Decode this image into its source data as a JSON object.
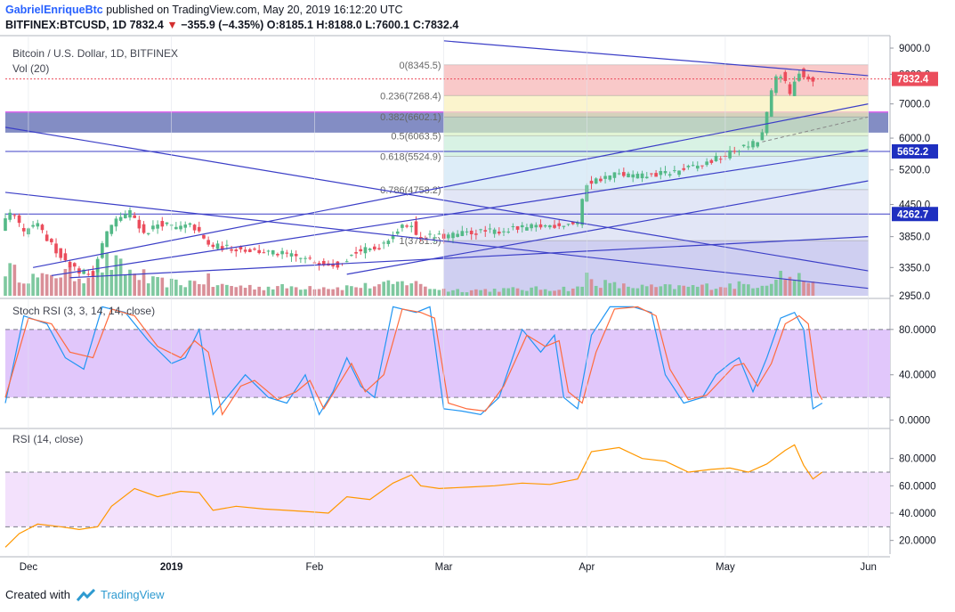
{
  "header": {
    "author": "GabrielEnriqueBtc",
    "published": "published on TradingView.com, May 20, 2019 16:12:20 UTC",
    "symbol": "BITFINEX:BTCUSD, 1D",
    "last": "7832.4",
    "change": "−355.9 (−4.35%)",
    "open": "O:8185.1",
    "high": "H:8188.0",
    "low": "L:7600.1",
    "close": "C:7832.4"
  },
  "footer": {
    "created_with": "Created with",
    "brand": "TradingView"
  },
  "colors": {
    "up": "#53b987",
    "down": "#eb4d5c",
    "vol_up": "#7ec89f",
    "vol_down": "#d98f98",
    "trendline": "#3c3fc7",
    "stoch_k": "#2196f3",
    "stoch_d": "#ff6b3d",
    "rsi": "#ff9800",
    "osc_band": "#e1c7fb",
    "rsi_band": "#f3e1fc"
  },
  "chart_data": [
    {
      "type": "candlestick",
      "title": "Bitcoin / U.S. Dollar, 1D, BITFINEX",
      "legend": [
        "Vol (20)"
      ],
      "yscale": "log",
      "ylim": [
        2950,
        9000
      ],
      "xlim": [
        "2018-11-26",
        "2019-06-03"
      ],
      "x_ticks": [
        "Dec",
        "2019",
        "Feb",
        "Mar",
        "Apr",
        "May",
        "Jun"
      ],
      "x_tick_dates": [
        "2018-12-01",
        "2019-01-01",
        "2019-02-01",
        "2019-03-01",
        "2019-04-01",
        "2019-05-01",
        "2019-06-01"
      ],
      "y_ticks": [
        9000,
        8000,
        7000,
        6000,
        5200,
        4450,
        3850,
        3350,
        2950
      ],
      "y_tick_labels": [
        "9000.0",
        "8000.0",
        "7000.0",
        "6000.0",
        "5200.0",
        "4450.0",
        "3850.0",
        "3350.0",
        "2950.0"
      ],
      "price_tags": [
        {
          "label": "7832.4",
          "value": 7832.4,
          "color": "#eb4d5c"
        },
        {
          "label": "5652.2",
          "value": 5652.2,
          "color": "#1e2fc0"
        },
        {
          "label": "4262.7",
          "value": 4262.7,
          "color": "#1e2fc0"
        }
      ],
      "horizontal_lines": [
        {
          "value": 5652.2,
          "color": "#3c3fc7"
        },
        {
          "value": 4262.7,
          "color": "#3c3fc7"
        }
      ],
      "zone": {
        "from": 6150,
        "to": 6750,
        "color": "#1e2f93"
      },
      "fib_retracement": {
        "start": "2019-03-01",
        "end": "2019-06-01",
        "levels": [
          {
            "label": "0(8345.5)",
            "value": 8345.5,
            "color": "#f7b2b2"
          },
          {
            "label": "0.236(7268.4)",
            "value": 7268.4,
            "color": "#f9efb8"
          },
          {
            "label": "0.382(6602.1)",
            "value": 6602.1,
            "color": "#d6efc2"
          },
          {
            "label": "0.5(6063.5)",
            "value": 6063.5,
            "color": "#c8ecd8"
          },
          {
            "label": "0.618(5524.9)",
            "value": 5524.9,
            "color": "#cfe6f5"
          },
          {
            "label": "0.786(4758.2)",
            "value": 4758.2,
            "color": "#d6dcf2"
          },
          {
            "label": "1(3781.5)",
            "value": 3781.5,
            "color": "#d0d0ee"
          }
        ]
      },
      "ohlc_segments": [
        {
          "from": "2018-11-26",
          "to": "2018-12-06",
          "path": [
            4000,
            4300,
            3900,
            4100,
            3800
          ],
          "volume": [
            60,
            45,
            40,
            35,
            38
          ]
        },
        {
          "from": "2018-12-06",
          "to": "2018-12-16",
          "path": [
            3800,
            3500,
            3300,
            3250
          ],
          "volume": [
            50,
            45,
            40,
            55
          ]
        },
        {
          "from": "2018-12-16",
          "to": "2018-12-27",
          "path": [
            3250,
            3900,
            4200,
            4300,
            3900
          ],
          "volume": [
            60,
            70,
            55,
            45,
            40
          ]
        },
        {
          "from": "2018-12-27",
          "to": "2019-01-10",
          "path": [
            3900,
            4100,
            4000,
            4050,
            3700
          ],
          "volume": [
            30,
            28,
            25,
            30,
            35
          ]
        },
        {
          "from": "2019-01-10",
          "to": "2019-02-07",
          "path": [
            3700,
            3650,
            3600,
            3550,
            3450,
            3400
          ],
          "volume": [
            22,
            20,
            18,
            18,
            20,
            16
          ]
        },
        {
          "from": "2019-02-07",
          "to": "2019-02-24",
          "path": [
            3400,
            3600,
            3650,
            3950,
            4150
          ],
          "volume": [
            18,
            20,
            22,
            26,
            35
          ]
        },
        {
          "from": "2019-02-24",
          "to": "2019-03-31",
          "path": [
            3850,
            3850,
            3920,
            3950,
            4000,
            4050,
            4100
          ],
          "volume": [
            20,
            12,
            12,
            13,
            14,
            15,
            16
          ]
        },
        {
          "from": "2019-03-31",
          "to": "2019-04-02",
          "path": [
            4100,
            4900
          ],
          "volume": [
            16,
            95
          ]
        },
        {
          "from": "2019-04-02",
          "to": "2019-05-09",
          "path": [
            4900,
            5100,
            5050,
            5150,
            5300,
            5600,
            5900
          ],
          "volume": [
            30,
            20,
            18,
            18,
            20,
            22,
            24
          ]
        },
        {
          "from": "2019-05-09",
          "to": "2019-05-14",
          "path": [
            5900,
            6200,
            7000,
            7900,
            8000
          ],
          "volume": [
            25,
            30,
            40,
            45,
            42
          ]
        },
        {
          "from": "2019-05-14",
          "to": "2019-05-20",
          "path": [
            8000,
            7300,
            8100,
            7832.4
          ],
          "volume": [
            40,
            38,
            35,
            30
          ]
        }
      ],
      "trendlines": [
        {
          "from": [
            "2019-03-01",
            9300
          ],
          "to": [
            "2019-06-01",
            7950
          ]
        },
        {
          "from": [
            "2018-12-02",
            3350
          ],
          "to": [
            "2019-06-01",
            7000
          ]
        },
        {
          "from": [
            "2018-12-06",
            3230
          ],
          "to": [
            "2019-06-01",
            5700
          ]
        },
        {
          "from": [
            "2019-02-08",
            3250
          ],
          "to": [
            "2019-06-01",
            4950
          ]
        },
        {
          "from": [
            "2018-12-10",
            3200
          ],
          "to": [
            "2019-06-01",
            3850
          ]
        },
        {
          "from": [
            "2018-11-26",
            6300
          ],
          "to": [
            "2019-06-01",
            3300
          ]
        },
        {
          "from": [
            "2018-11-26",
            4700
          ],
          "to": [
            "2019-06-01",
            3050
          ]
        }
      ],
      "trend_extensions": [
        {
          "from": [
            "2019-05-09",
            5900
          ],
          "to": [
            "2019-06-01",
            6600
          ]
        }
      ]
    },
    {
      "type": "line",
      "title": "Stoch RSI (3, 3, 14, 14, close)",
      "ylim": [
        -5,
        105
      ],
      "y_ticks": [
        80,
        40,
        0
      ],
      "y_tick_labels": [
        "80.0000",
        "40.0000",
        "0.0000"
      ],
      "bands": [
        20,
        80
      ],
      "series": [
        {
          "color": "#2196f3",
          "points": [
            [
              "2018-11-26",
              15
            ],
            [
              "2018-11-30",
              92
            ],
            [
              "2018-12-05",
              85
            ],
            [
              "2018-12-09",
              55
            ],
            [
              "2018-12-13",
              45
            ],
            [
              "2018-12-17",
              100
            ],
            [
              "2018-12-22",
              95
            ],
            [
              "2018-12-27",
              70
            ],
            [
              "2019-01-01",
              50
            ],
            [
              "2019-01-04",
              55
            ],
            [
              "2019-01-07",
              80
            ],
            [
              "2019-01-10",
              5
            ],
            [
              "2019-01-14",
              25
            ],
            [
              "2019-01-17",
              40
            ],
            [
              "2019-01-22",
              20
            ],
            [
              "2019-01-26",
              15
            ],
            [
              "2019-01-30",
              40
            ],
            [
              "2019-02-02",
              5
            ],
            [
              "2019-02-05",
              25
            ],
            [
              "2019-02-08",
              55
            ],
            [
              "2019-02-11",
              30
            ],
            [
              "2019-02-14",
              20
            ],
            [
              "2019-02-18",
              100
            ],
            [
              "2019-02-23",
              95
            ],
            [
              "2019-02-26",
              100
            ],
            [
              "2019-03-01",
              10
            ],
            [
              "2019-03-05",
              8
            ],
            [
              "2019-03-09",
              5
            ],
            [
              "2019-03-13",
              20
            ],
            [
              "2019-03-18",
              80
            ],
            [
              "2019-03-22",
              60
            ],
            [
              "2019-03-25",
              75
            ],
            [
              "2019-03-27",
              20
            ],
            [
              "2019-03-30",
              10
            ],
            [
              "2019-04-02",
              75
            ],
            [
              "2019-04-06",
              100
            ],
            [
              "2019-04-11",
              100
            ],
            [
              "2019-04-15",
              95
            ],
            [
              "2019-04-18",
              40
            ],
            [
              "2019-04-22",
              15
            ],
            [
              "2019-04-26",
              20
            ],
            [
              "2019-04-29",
              40
            ],
            [
              "2019-05-02",
              50
            ],
            [
              "2019-05-04",
              55
            ],
            [
              "2019-05-07",
              25
            ],
            [
              "2019-05-10",
              55
            ],
            [
              "2019-05-13",
              90
            ],
            [
              "2019-05-16",
              95
            ],
            [
              "2019-05-18",
              80
            ],
            [
              "2019-05-20",
              10
            ],
            [
              "2019-05-22",
              15
            ]
          ]
        },
        {
          "color": "#ff6b3d",
          "points": [
            [
              "2018-11-26",
              20
            ],
            [
              "2018-12-01",
              90
            ],
            [
              "2018-12-06",
              85
            ],
            [
              "2018-12-10",
              60
            ],
            [
              "2018-12-15",
              55
            ],
            [
              "2018-12-19",
              98
            ],
            [
              "2018-12-24",
              92
            ],
            [
              "2018-12-29",
              65
            ],
            [
              "2019-01-03",
              55
            ],
            [
              "2019-01-06",
              70
            ],
            [
              "2019-01-09",
              60
            ],
            [
              "2019-01-12",
              5
            ],
            [
              "2019-01-16",
              30
            ],
            [
              "2019-01-19",
              35
            ],
            [
              "2019-01-24",
              18
            ],
            [
              "2019-01-28",
              25
            ],
            [
              "2019-01-31",
              35
            ],
            [
              "2019-02-03",
              10
            ],
            [
              "2019-02-06",
              30
            ],
            [
              "2019-02-09",
              50
            ],
            [
              "2019-02-12",
              25
            ],
            [
              "2019-02-16",
              40
            ],
            [
              "2019-02-20",
              98
            ],
            [
              "2019-02-24",
              95
            ],
            [
              "2019-02-27",
              90
            ],
            [
              "2019-03-02",
              15
            ],
            [
              "2019-03-06",
              10
            ],
            [
              "2019-03-10",
              8
            ],
            [
              "2019-03-14",
              30
            ],
            [
              "2019-03-19",
              75
            ],
            [
              "2019-03-23",
              65
            ],
            [
              "2019-03-26",
              70
            ],
            [
              "2019-03-28",
              25
            ],
            [
              "2019-03-31",
              15
            ],
            [
              "2019-04-03",
              60
            ],
            [
              "2019-04-07",
              98
            ],
            [
              "2019-04-12",
              100
            ],
            [
              "2019-04-16",
              92
            ],
            [
              "2019-04-19",
              45
            ],
            [
              "2019-04-23",
              18
            ],
            [
              "2019-04-27",
              22
            ],
            [
              "2019-04-30",
              35
            ],
            [
              "2019-05-03",
              48
            ],
            [
              "2019-05-05",
              50
            ],
            [
              "2019-05-08",
              30
            ],
            [
              "2019-05-11",
              50
            ],
            [
              "2019-05-14",
              85
            ],
            [
              "2019-05-17",
              92
            ],
            [
              "2019-05-19",
              85
            ],
            [
              "2019-05-21",
              25
            ],
            [
              "2019-05-22",
              18
            ]
          ]
        }
      ]
    },
    {
      "type": "line",
      "title": "RSI (14, close)",
      "ylim": [
        10,
        100
      ],
      "y_ticks": [
        80,
        60,
        40,
        20
      ],
      "y_tick_labels": [
        "80.0000",
        "60.0000",
        "40.0000",
        "20.0000"
      ],
      "bands": [
        30,
        70
      ],
      "series": [
        {
          "color": "#ff9800",
          "points": [
            [
              "2018-11-26",
              15
            ],
            [
              "2018-11-29",
              25
            ],
            [
              "2018-12-03",
              32
            ],
            [
              "2018-12-08",
              30
            ],
            [
              "2018-12-12",
              28
            ],
            [
              "2018-12-16",
              30
            ],
            [
              "2018-12-19",
              45
            ],
            [
              "2018-12-24",
              58
            ],
            [
              "2018-12-29",
              52
            ],
            [
              "2019-01-03",
              56
            ],
            [
              "2019-01-07",
              55
            ],
            [
              "2019-01-10",
              42
            ],
            [
              "2019-01-15",
              45
            ],
            [
              "2019-01-21",
              43
            ],
            [
              "2019-01-26",
              42
            ],
            [
              "2019-01-31",
              41
            ],
            [
              "2019-02-04",
              40
            ],
            [
              "2019-02-08",
              52
            ],
            [
              "2019-02-13",
              50
            ],
            [
              "2019-02-18",
              62
            ],
            [
              "2019-02-22",
              68
            ],
            [
              "2019-02-24",
              60
            ],
            [
              "2019-02-28",
              58
            ],
            [
              "2019-03-06",
              59
            ],
            [
              "2019-03-12",
              60
            ],
            [
              "2019-03-18",
              62
            ],
            [
              "2019-03-24",
              61
            ],
            [
              "2019-03-30",
              65
            ],
            [
              "2019-04-02",
              85
            ],
            [
              "2019-04-08",
              88
            ],
            [
              "2019-04-13",
              80
            ],
            [
              "2019-04-18",
              78
            ],
            [
              "2019-04-23",
              70
            ],
            [
              "2019-04-28",
              72
            ],
            [
              "2019-05-02",
              73
            ],
            [
              "2019-05-06",
              70
            ],
            [
              "2019-05-10",
              76
            ],
            [
              "2019-05-14",
              86
            ],
            [
              "2019-05-16",
              90
            ],
            [
              "2019-05-18",
              75
            ],
            [
              "2019-05-20",
              65
            ],
            [
              "2019-05-22",
              70
            ]
          ]
        }
      ]
    }
  ]
}
